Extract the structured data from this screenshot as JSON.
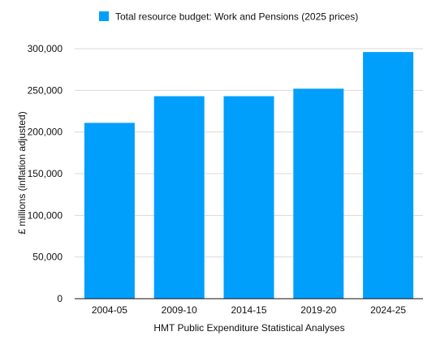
{
  "chart_data": {
    "type": "bar",
    "title": "",
    "legend": {
      "position": "top",
      "entries": [
        "Total resource budget: Work and Pensions (2025 prices)"
      ]
    },
    "categories": [
      "2004-05",
      "2009-10",
      "2014-15",
      "2019-20",
      "2024-25"
    ],
    "series": [
      {
        "name": "Total resource budget: Work and Pensions (2025 prices)",
        "values": [
          211000,
          243000,
          243000,
          252000,
          296000
        ],
        "color": "#009ffc"
      }
    ],
    "xlabel": "HMT Public Expenditure Statistical Analyses",
    "ylabel": "£ millions (inflation adjusted)",
    "ylim": [
      0,
      300000
    ],
    "yticks": [
      0,
      50000,
      100000,
      150000,
      200000,
      250000,
      300000
    ],
    "ytick_labels": [
      "0",
      "50,000",
      "100,000",
      "150,000",
      "200,000",
      "250,000",
      "300,000"
    ],
    "grid": true
  }
}
